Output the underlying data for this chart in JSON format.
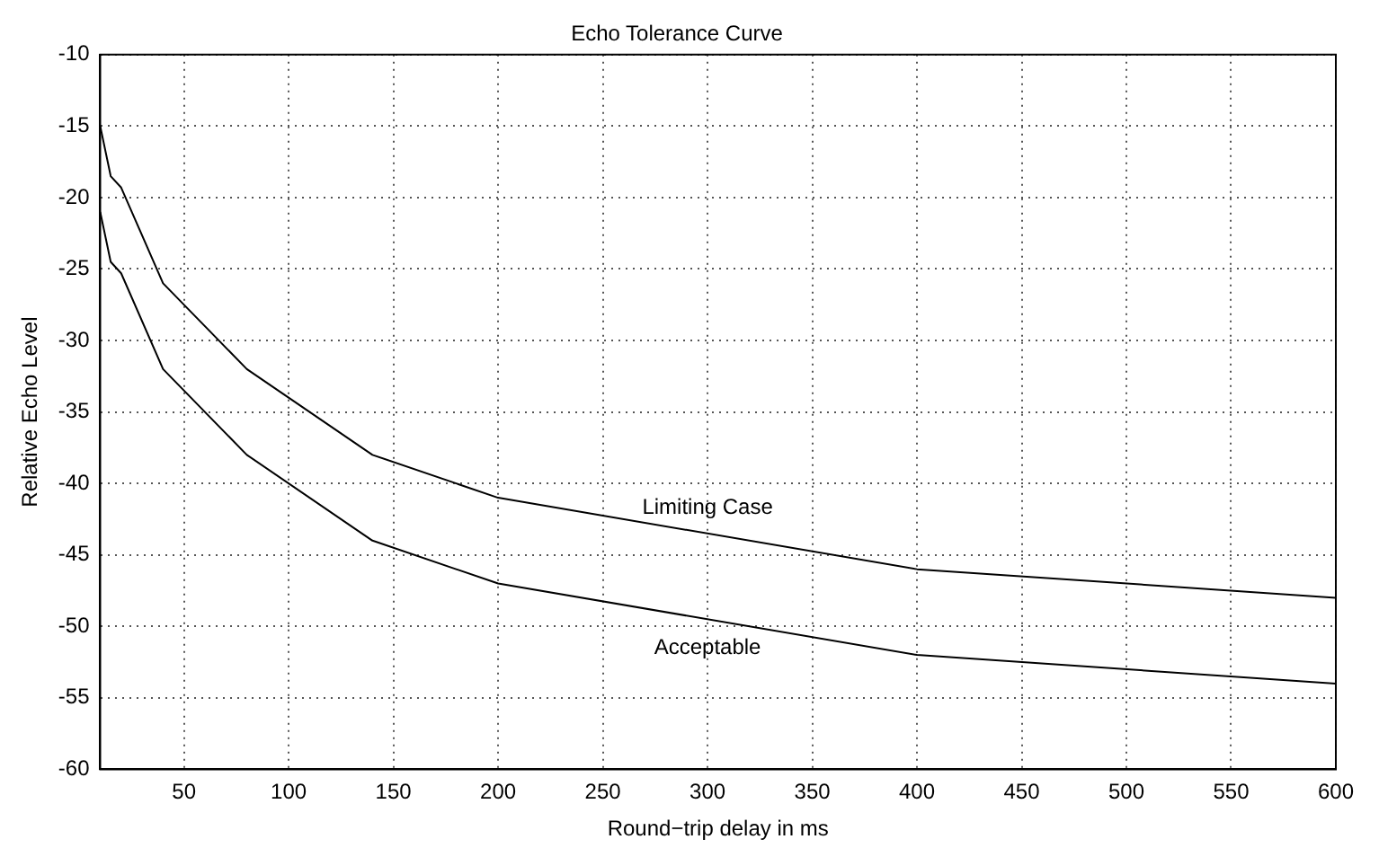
{
  "chart_data": {
    "type": "line",
    "title": "Echo Tolerance Curve",
    "xlabel": "Round−trip delay in ms",
    "ylabel": "Relative Echo Level",
    "x": [
      10,
      15,
      20,
      40,
      80,
      140,
      200,
      400,
      600
    ],
    "series": [
      {
        "name": "Limiting Case",
        "color": "#000000",
        "values": [
          -15,
          -18.5,
          -19.3,
          -26,
          -32,
          -38,
          -41,
          -46,
          -48
        ]
      },
      {
        "name": "Acceptable",
        "color": "#000000",
        "values": [
          -21,
          -24.5,
          -25.3,
          -32,
          -38,
          -44,
          -47,
          -52,
          -54
        ]
      }
    ],
    "xlim": [
      10,
      600
    ],
    "xticks": [
      50,
      100,
      150,
      200,
      250,
      300,
      350,
      400,
      450,
      500,
      550,
      600
    ],
    "ylim": [
      -60,
      -10
    ],
    "yticks": [
      -60,
      -55,
      -50,
      -45,
      -40,
      -35,
      -30,
      -25,
      -20,
      -15,
      -10
    ],
    "grid": true,
    "legend": false,
    "marker": "none",
    "line_style": "solid"
  }
}
